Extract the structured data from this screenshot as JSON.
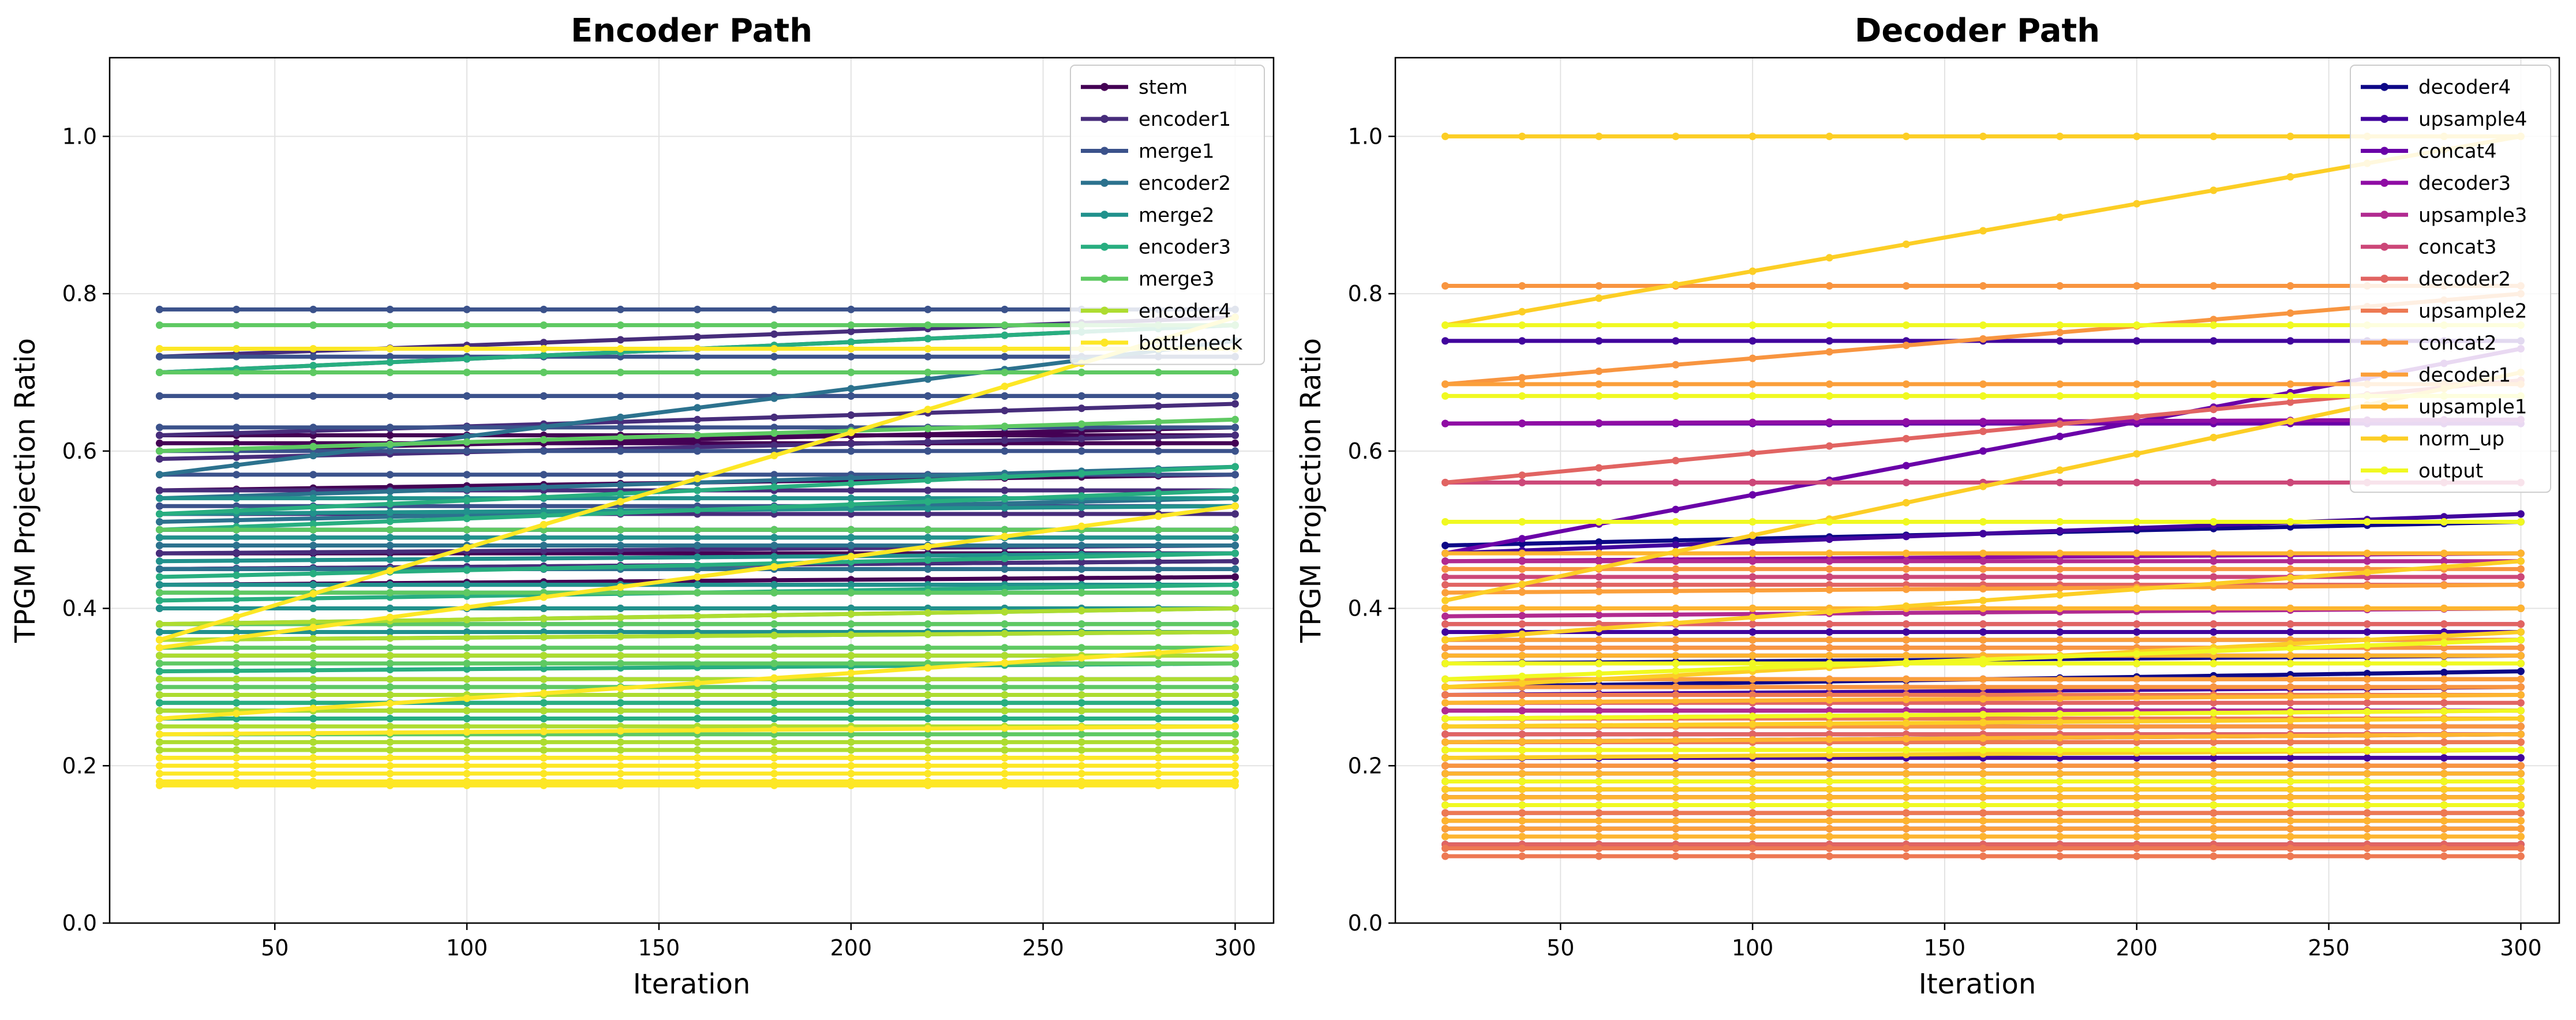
{
  "chart_data": [
    {
      "type": "line",
      "title": "Encoder Path",
      "xlabel": "Iteration",
      "ylabel": "TPGM Projection Ratio",
      "xlim": [
        7,
        310
      ],
      "ylim": [
        0.0,
        1.1
      ],
      "xticks": [
        50,
        100,
        150,
        200,
        250,
        300
      ],
      "yticks": [
        0.0,
        0.2,
        0.4,
        0.6,
        0.8,
        1.0
      ],
      "x": [
        20,
        40,
        60,
        80,
        100,
        120,
        140,
        160,
        180,
        200,
        220,
        240,
        260,
        280,
        300
      ],
      "grid": true,
      "legend": "top-right",
      "series": [
        {
          "name": "stem",
          "color": "#440154",
          "start": [
            0.62,
            0.61,
            0.6,
            0.55,
            0.5,
            0.47,
            0.45,
            0.43,
            0.4
          ],
          "end": [
            0.62,
            0.61,
            0.63,
            0.57,
            0.5,
            0.47,
            0.46,
            0.44,
            0.4
          ]
        },
        {
          "name": "encoder1",
          "color": "#472d7b",
          "start": [
            0.72,
            0.7,
            0.67,
            0.62,
            0.59,
            0.55,
            0.52,
            0.49,
            0.47,
            0.45
          ],
          "end": [
            0.77,
            0.76,
            0.67,
            0.66,
            0.62,
            0.55,
            0.52,
            0.49,
            0.48,
            0.46
          ]
        },
        {
          "name": "merge1",
          "color": "#3b528b",
          "start": [
            0.78,
            0.72,
            0.67,
            0.63,
            0.6,
            0.57,
            0.53,
            0.5,
            0.48,
            0.45,
            0.43
          ],
          "end": [
            0.78,
            0.72,
            0.67,
            0.63,
            0.6,
            0.57,
            0.53,
            0.5,
            0.48,
            0.45,
            0.43
          ]
        },
        {
          "name": "encoder2",
          "color": "#2c728e",
          "start": [
            0.57,
            0.54,
            0.51,
            0.48,
            0.45,
            0.42,
            0.38,
            0.34,
            0.31,
            0.28,
            0.26
          ],
          "end": [
            0.74,
            0.58,
            0.54,
            0.48,
            0.45,
            0.42,
            0.38,
            0.34,
            0.31,
            0.28,
            0.26
          ]
        },
        {
          "name": "merge2",
          "color": "#21918c",
          "start": [
            0.54,
            0.52,
            0.49,
            0.46,
            0.43,
            0.4,
            0.37,
            0.33,
            0.3,
            0.27
          ],
          "end": [
            0.54,
            0.53,
            0.49,
            0.47,
            0.43,
            0.4,
            0.37,
            0.33,
            0.3,
            0.27
          ]
        },
        {
          "name": "encoder3",
          "color": "#28ae80",
          "start": [
            0.7,
            0.52,
            0.5,
            0.44,
            0.41,
            0.38,
            0.36,
            0.32,
            0.29,
            0.28,
            0.26
          ],
          "end": [
            0.76,
            0.58,
            0.55,
            0.47,
            0.43,
            0.4,
            0.37,
            0.33,
            0.29,
            0.28,
            0.26
          ]
        },
        {
          "name": "merge3",
          "color": "#5ec962",
          "start": [
            0.76,
            0.7,
            0.6,
            0.5,
            0.42,
            0.38,
            0.35,
            0.33,
            0.3,
            0.27,
            0.24,
            0.22
          ],
          "end": [
            0.76,
            0.7,
            0.64,
            0.5,
            0.42,
            0.38,
            0.35,
            0.33,
            0.3,
            0.27,
            0.24,
            0.22
          ]
        },
        {
          "name": "encoder4",
          "color": "#addc30",
          "start": [
            0.38,
            0.36,
            0.34,
            0.31,
            0.29,
            0.27,
            0.25,
            0.23,
            0.22,
            0.21
          ],
          "end": [
            0.4,
            0.37,
            0.34,
            0.31,
            0.29,
            0.27,
            0.25,
            0.23,
            0.22,
            0.21
          ]
        },
        {
          "name": "bottleneck",
          "color": "#fde725",
          "start": [
            0.73,
            0.36,
            0.35,
            0.26,
            0.24,
            0.21,
            0.2,
            0.19,
            0.18,
            0.175
          ],
          "end": [
            0.73,
            0.77,
            0.53,
            0.35,
            0.25,
            0.21,
            0.2,
            0.19,
            0.18,
            0.175
          ]
        }
      ]
    },
    {
      "type": "line",
      "title": "Decoder Path",
      "xlabel": "Iteration",
      "ylabel": "TPGM Projection Ratio",
      "xlim": [
        7,
        310
      ],
      "ylim": [
        0.0,
        1.1
      ],
      "xticks": [
        50,
        100,
        150,
        200,
        250,
        300
      ],
      "yticks": [
        0.0,
        0.2,
        0.4,
        0.6,
        0.8,
        1.0
      ],
      "x": [
        20,
        40,
        60,
        80,
        100,
        120,
        140,
        160,
        180,
        200,
        220,
        240,
        260,
        280,
        300
      ],
      "grid": true,
      "legend": "top-right",
      "series": [
        {
          "name": "decoder4",
          "color": "#0d0887",
          "start": [
            0.48,
            0.36,
            0.33,
            0.3,
            0.26,
            0.23,
            0.19,
            0.15,
            0.12,
            0.1
          ],
          "end": [
            0.51,
            0.36,
            0.34,
            0.32,
            0.26,
            0.24,
            0.19,
            0.15,
            0.12,
            0.1
          ]
        },
        {
          "name": "upsample4",
          "color": "#41049d",
          "start": [
            0.74,
            0.47,
            0.37,
            0.33,
            0.29,
            0.25,
            0.21,
            0.17,
            0.14,
            0.12
          ],
          "end": [
            0.74,
            0.52,
            0.37,
            0.33,
            0.3,
            0.25,
            0.21,
            0.17,
            0.14,
            0.12
          ]
        },
        {
          "name": "concat4",
          "color": "#6a00a8",
          "start": [
            0.635,
            0.47,
            0.4,
            0.34,
            0.29,
            0.24,
            0.2,
            0.16
          ],
          "end": [
            0.635,
            0.73,
            0.4,
            0.34,
            0.29,
            0.24,
            0.2,
            0.16
          ]
        },
        {
          "name": "decoder3",
          "color": "#8f0da4",
          "start": [
            0.635,
            0.46,
            0.38,
            0.33,
            0.27,
            0.22,
            0.18,
            0.15
          ],
          "end": [
            0.64,
            0.47,
            0.38,
            0.33,
            0.27,
            0.22,
            0.18,
            0.15
          ]
        },
        {
          "name": "upsample3",
          "color": "#b12a90",
          "start": [
            0.46,
            0.39,
            0.35,
            0.31,
            0.27,
            0.23,
            0.19,
            0.16
          ],
          "end": [
            0.46,
            0.4,
            0.35,
            0.31,
            0.27,
            0.23,
            0.19,
            0.16
          ]
        },
        {
          "name": "concat3",
          "color": "#cc4778",
          "start": [
            0.56,
            0.44,
            0.38,
            0.34,
            0.3,
            0.26,
            0.22,
            0.18,
            0.14
          ],
          "end": [
            0.56,
            0.44,
            0.38,
            0.34,
            0.3,
            0.26,
            0.22,
            0.18,
            0.14
          ]
        },
        {
          "name": "decoder2",
          "color": "#e16462",
          "start": [
            0.56,
            0.43,
            0.38,
            0.33,
            0.28,
            0.24,
            0.2,
            0.16,
            0.13,
            0.1
          ],
          "end": [
            0.69,
            0.43,
            0.38,
            0.33,
            0.28,
            0.24,
            0.2,
            0.16,
            0.13,
            0.1
          ]
        },
        {
          "name": "upsample2",
          "color": "#ed7953",
          "start": [
            0.29,
            0.26,
            0.23,
            0.2,
            0.17,
            0.14,
            0.11,
            0.095,
            0.085
          ],
          "end": [
            0.29,
            0.26,
            0.23,
            0.2,
            0.17,
            0.14,
            0.11,
            0.095,
            0.085
          ]
        },
        {
          "name": "concat2",
          "color": "#f89540",
          "start": [
            0.81,
            0.685,
            0.45,
            0.4,
            0.35,
            0.3,
            0.25,
            0.2,
            0.15,
            0.12
          ],
          "end": [
            0.81,
            0.8,
            0.45,
            0.4,
            0.35,
            0.3,
            0.25,
            0.2,
            0.15,
            0.12
          ]
        },
        {
          "name": "decoder1",
          "color": "#fb9f3a",
          "start": [
            0.685,
            0.42,
            0.36,
            0.31,
            0.26,
            0.22,
            0.18,
            0.15,
            0.12
          ],
          "end": [
            0.685,
            0.43,
            0.36,
            0.31,
            0.27,
            0.22,
            0.18,
            0.15,
            0.12
          ]
        },
        {
          "name": "upsample1",
          "color": "#fdb42f",
          "start": [
            0.47,
            0.4,
            0.34,
            0.28,
            0.23,
            0.19,
            0.16,
            0.13,
            0.11
          ],
          "end": [
            0.47,
            0.4,
            0.34,
            0.29,
            0.24,
            0.19,
            0.16,
            0.13,
            0.11
          ]
        },
        {
          "name": "norm_up",
          "color": "#fcce25",
          "start": [
            1.0,
            0.76,
            0.41,
            0.36,
            0.3,
            0.25,
            0.21,
            0.17
          ],
          "end": [
            1.0,
            1.0,
            0.7,
            0.46,
            0.37,
            0.26,
            0.22,
            0.17
          ]
        },
        {
          "name": "output",
          "color": "#f0f921",
          "start": [
            0.76,
            0.67,
            0.51,
            0.33,
            0.31,
            0.26,
            0.22,
            0.18,
            0.15
          ],
          "end": [
            0.76,
            0.67,
            0.51,
            0.33,
            0.36,
            0.27,
            0.22,
            0.18,
            0.15
          ]
        }
      ]
    }
  ]
}
